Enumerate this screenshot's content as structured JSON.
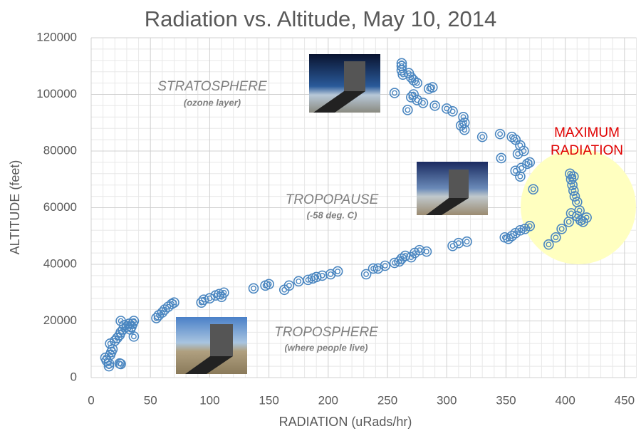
{
  "chart_data": {
    "type": "scatter",
    "title": "Radiation vs. Altitude, May 10, 2014",
    "xlabel": "RADIATION (uRads/hr)",
    "ylabel": "ALTITUDE (feet)",
    "xlim": [
      0,
      460
    ],
    "ylim": [
      0,
      120000
    ],
    "xticks": [
      0,
      50,
      100,
      150,
      200,
      250,
      300,
      350,
      400,
      450
    ],
    "yticks": [
      0,
      20000,
      40000,
      60000,
      80000,
      100000,
      120000
    ],
    "grid": true,
    "color": "#4a86c0",
    "annotations": [
      "STRATOSPHERE",
      "(ozone layer)",
      "TROPOPAUSE",
      "(-58 deg. C)",
      "TROPOSPHERE",
      "(where people live)",
      "MAXIMUM",
      "RADIATION"
    ],
    "x": [
      12,
      13,
      15,
      15,
      16,
      17,
      18,
      16,
      20,
      22,
      24,
      25,
      27,
      25,
      30,
      32,
      34,
      35,
      36,
      36,
      24,
      25,
      33,
      28,
      55,
      57,
      60,
      62,
      65,
      68,
      70,
      93,
      95,
      100,
      105,
      108,
      110,
      112,
      137,
      147,
      150,
      163,
      167,
      175,
      183,
      187,
      190,
      195,
      202,
      208,
      232,
      238,
      242,
      248,
      256,
      260,
      262,
      265,
      270,
      273,
      277,
      283,
      305,
      310,
      317,
      349,
      352,
      355,
      358,
      362,
      366,
      370,
      386,
      392,
      397,
      403,
      405,
      410,
      413,
      415,
      418,
      412,
      410,
      408,
      407,
      406,
      405,
      404,
      407,
      373,
      362,
      358,
      363,
      368,
      370,
      346,
      360,
      365,
      362,
      358,
      355,
      345,
      330,
      315,
      312,
      315,
      314,
      305,
      300,
      290,
      280,
      275,
      270,
      267,
      256,
      272,
      285,
      288,
      275,
      270,
      263,
      262,
      262,
      262,
      268,
      272
    ],
    "y": [
      7000,
      6000,
      5000,
      4000,
      8000,
      9000,
      10000,
      12000,
      13000,
      14000,
      15000,
      16000,
      17000,
      20000,
      18000,
      19000,
      18000,
      19000,
      20000,
      14500,
      5000,
      4800,
      17000,
      18500,
      21000,
      22000,
      23000,
      24000,
      25000,
      26000,
      26500,
      26500,
      27500,
      28000,
      29000,
      29500,
      28500,
      30000,
      31500,
      32500,
      33000,
      31000,
      32500,
      34000,
      34500,
      35000,
      35500,
      36000,
      36500,
      37500,
      36500,
      38500,
      38500,
      39500,
      40500,
      41000,
      42000,
      43000,
      42500,
      44000,
      45000,
      44500,
      46500,
      47500,
      48000,
      49500,
      49000,
      50000,
      51000,
      52000,
      52500,
      53500,
      47000,
      49500,
      52500,
      55000,
      58000,
      57000,
      55500,
      55000,
      56500,
      59000,
      62000,
      64000,
      66000,
      68000,
      70000,
      72000,
      71000,
      66500,
      71000,
      73000,
      74000,
      75500,
      76000,
      77500,
      79000,
      80000,
      82000,
      84000,
      85000,
      86000,
      85000,
      87500,
      89000,
      90000,
      92000,
      94000,
      95000,
      96000,
      97000,
      98000,
      99000,
      94500,
      100500,
      100000,
      102000,
      102500,
      104000,
      106000,
      107000,
      108500,
      110000,
      111000,
      107500,
      105000
    ]
  }
}
